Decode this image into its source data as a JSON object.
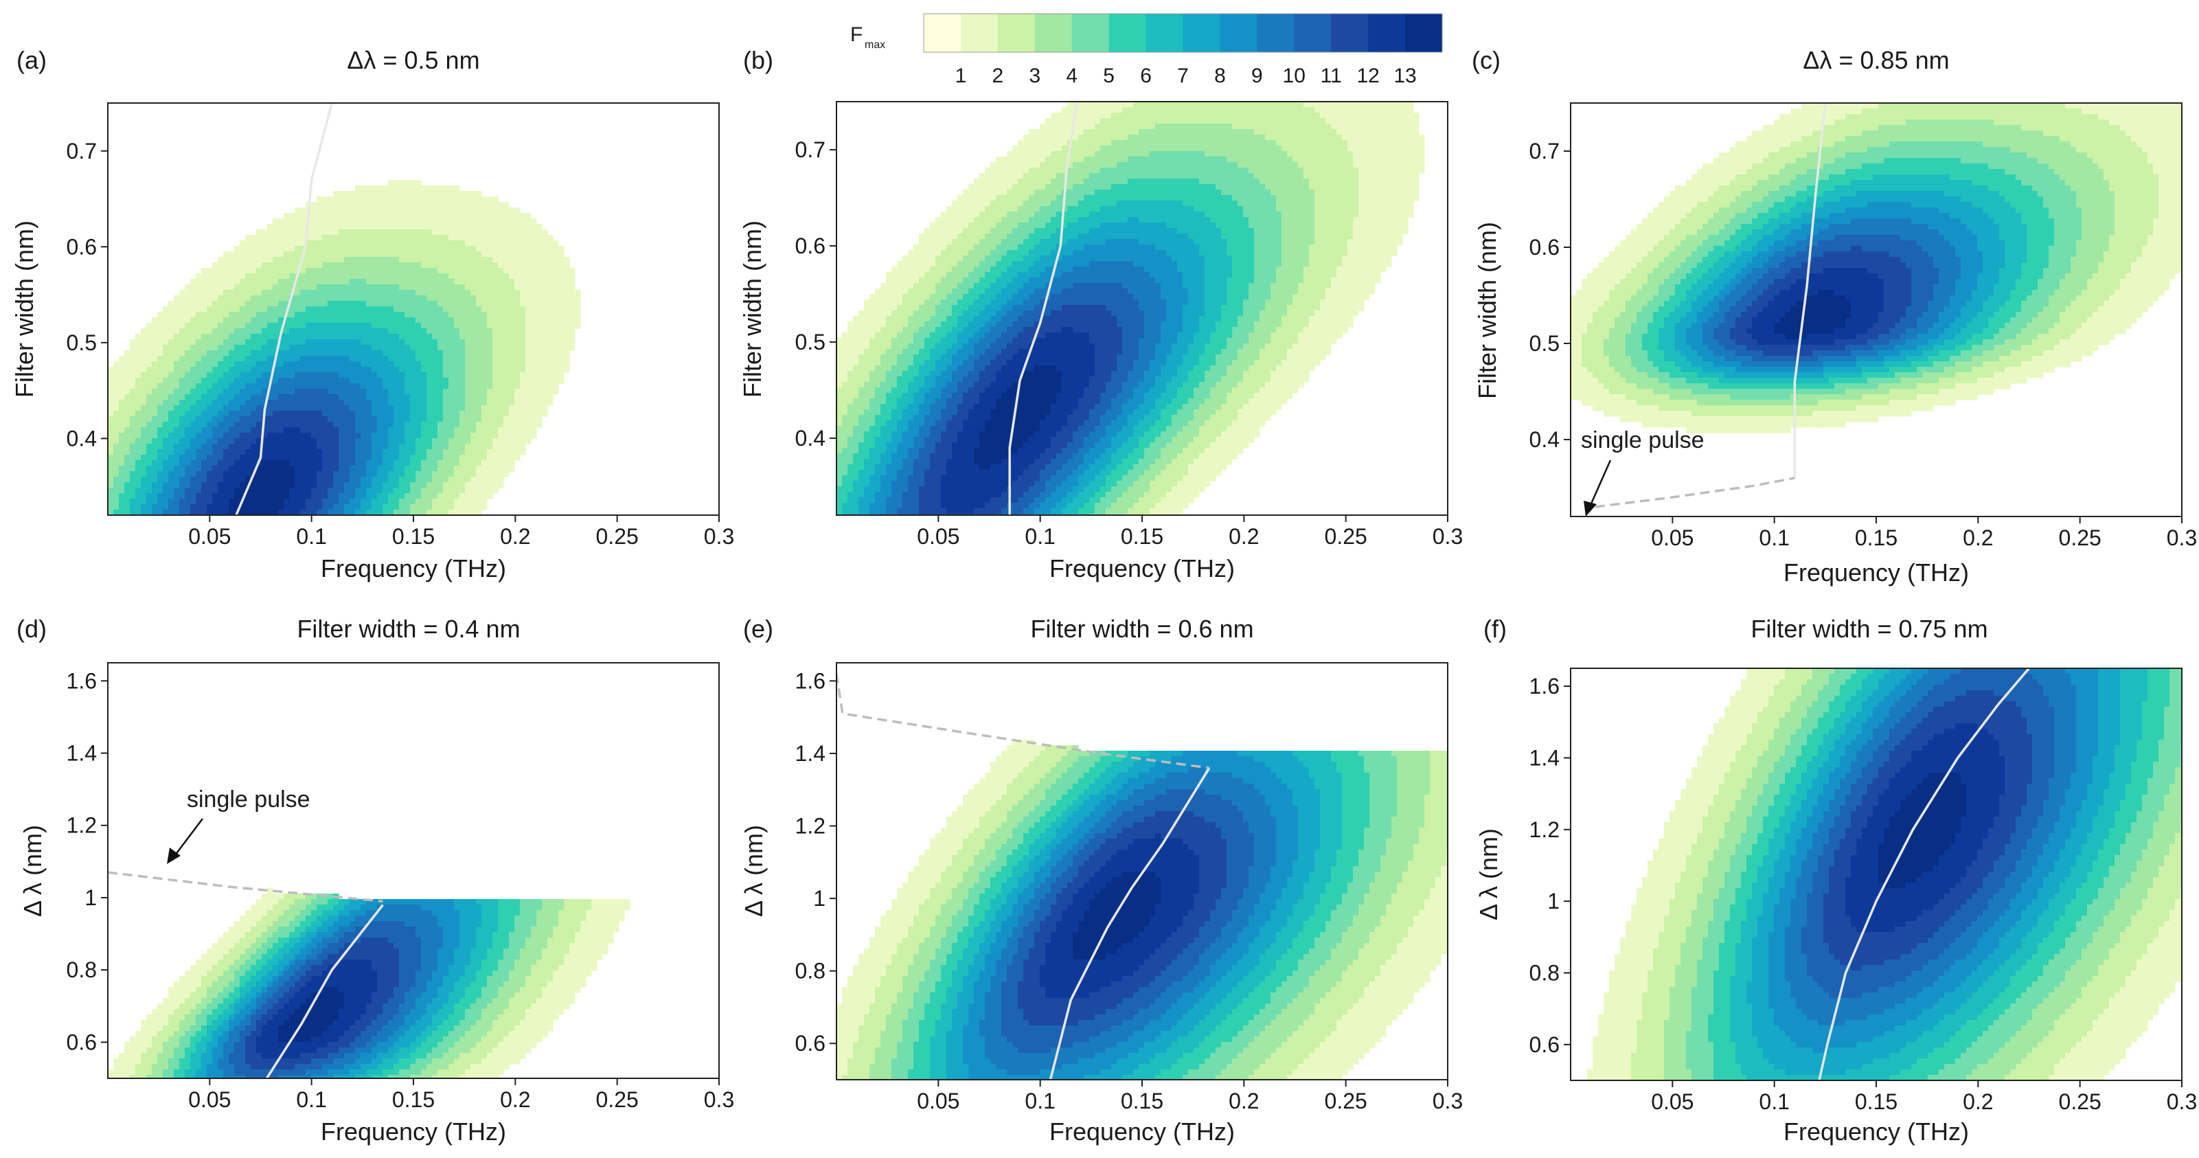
{
  "colorbar": {
    "label": "F",
    "label_sub": "max",
    "ticks": [
      "1",
      "2",
      "3",
      "4",
      "5",
      "6",
      "7",
      "8",
      "9",
      "10",
      "11",
      "12",
      "13"
    ],
    "colors": [
      "#ffffe0",
      "#eaf9c3",
      "#cbf2a6",
      "#a1e8a4",
      "#72ddad",
      "#2fd0b2",
      "#1cbcbf",
      "#16a8c7",
      "#1492c7",
      "#1a7ac0",
      "#1c63b3",
      "#1c49a2",
      "#0d3a9a",
      "#092e86"
    ]
  },
  "chart_data": [
    {
      "panel": "(a)",
      "type": "heatmap",
      "variant": "scan_dlambda",
      "title": "Δλ  = 0.5 nm",
      "xlabel": "Frequency (THz)",
      "ylabel": "Filter width (nm)",
      "xlim": [
        0,
        0.3
      ],
      "ylim": [
        0.32,
        0.75
      ],
      "xticks": [
        "0.05",
        "0.1",
        "0.15",
        "0.2",
        "0.25",
        "0.3"
      ],
      "yticks": [
        "0.4",
        "0.5",
        "0.6",
        "0.7"
      ],
      "peak": {
        "value": 13,
        "x": 0.075,
        "y": 0.34
      },
      "optimum_line": [
        [
          0.063,
          0.32
        ],
        [
          0.075,
          0.38
        ],
        [
          0.077,
          0.43
        ],
        [
          0.085,
          0.51
        ],
        [
          0.097,
          0.6
        ],
        [
          0.1,
          0.67
        ],
        [
          0.11,
          0.75
        ]
      ],
      "annotation": null
    },
    {
      "panel": "(b)",
      "type": "heatmap",
      "variant": "scan_dlambda",
      "title": "",
      "xlabel": "Frequency (THz)",
      "ylabel": "Filter width (nm)",
      "xlim": [
        0,
        0.3
      ],
      "ylim": [
        0.32,
        0.75
      ],
      "xticks": [
        "0.05",
        "0.1",
        "0.15",
        "0.2",
        "0.25",
        "0.3"
      ],
      "yticks": [
        "0.4",
        "0.5",
        "0.6",
        "0.7"
      ],
      "peak": {
        "value": 13,
        "x": 0.09,
        "y": 0.43
      },
      "optimum_line": [
        [
          0.085,
          0.32
        ],
        [
          0.085,
          0.39
        ],
        [
          0.09,
          0.46
        ],
        [
          0.1,
          0.52
        ],
        [
          0.11,
          0.6
        ],
        [
          0.113,
          0.68
        ],
        [
          0.118,
          0.75
        ]
      ],
      "annotation": null
    },
    {
      "panel": "(c)",
      "type": "heatmap",
      "variant": "scan_dlambda",
      "title": "Δλ  = 0.85 nm",
      "xlabel": "Frequency (THz)",
      "ylabel": "Filter width (nm)",
      "xlim": [
        0,
        0.3
      ],
      "ylim": [
        0.32,
        0.75
      ],
      "xticks": [
        "0.05",
        "0.1",
        "0.15",
        "0.2",
        "0.25",
        "0.3"
      ],
      "yticks": [
        "0.4",
        "0.5",
        "0.6",
        "0.7"
      ],
      "peak": {
        "value": 13,
        "x": 0.115,
        "y": 0.52
      },
      "optimum_line": [
        [
          0.11,
          0.36
        ],
        [
          0.11,
          0.46
        ],
        [
          0.116,
          0.56
        ],
        [
          0.12,
          0.65
        ],
        [
          0.125,
          0.75
        ]
      ],
      "threshold": [
        [
          0.012,
          0.33
        ],
        [
          0.05,
          0.34
        ],
        [
          0.09,
          0.352
        ],
        [
          0.11,
          0.36
        ]
      ],
      "annotation": "single pulse"
    },
    {
      "panel": "(d)",
      "type": "heatmap",
      "variant": "scan_filter",
      "title": "Filter width  = 0.4 nm",
      "xlabel": "Frequency (THz)",
      "ylabel": "Δ λ (nm)",
      "xlim": [
        0,
        0.3
      ],
      "ylim": [
        0.5,
        1.65
      ],
      "xticks": [
        "0.05",
        "0.1",
        "0.15",
        "0.2",
        "0.25",
        "0.3"
      ],
      "yticks": [
        "0.6",
        "0.8",
        "1",
        "1.2",
        "1.4",
        "1.6"
      ],
      "peak": {
        "value": 13,
        "x": 0.095,
        "y": 0.65
      },
      "optimum_line": [
        [
          0.078,
          0.5
        ],
        [
          0.095,
          0.65
        ],
        [
          0.11,
          0.8
        ],
        [
          0.135,
          0.98
        ]
      ],
      "threshold": [
        [
          0,
          1.07
        ],
        [
          0.06,
          1.03
        ],
        [
          0.135,
          0.99
        ]
      ],
      "annotation": "single pulse"
    },
    {
      "panel": "(e)",
      "type": "heatmap",
      "variant": "scan_filter",
      "title": "Filter width  = 0.6 nm",
      "xlabel": "Frequency (THz)",
      "ylabel": "Δ λ (nm)",
      "xlim": [
        0,
        0.3
      ],
      "ylim": [
        0.5,
        1.65
      ],
      "xticks": [
        "0.05",
        "0.1",
        "0.15",
        "0.2",
        "0.25",
        "0.3"
      ],
      "yticks": [
        "0.6",
        "0.8",
        "1",
        "1.2",
        "1.4",
        "1.6"
      ],
      "peak": {
        "value": 13,
        "x": 0.135,
        "y": 0.96
      },
      "optimum_line": [
        [
          0.105,
          0.5
        ],
        [
          0.115,
          0.72
        ],
        [
          0.133,
          0.92
        ],
        [
          0.145,
          1.03
        ],
        [
          0.16,
          1.15
        ],
        [
          0.183,
          1.36
        ]
      ],
      "threshold": [
        [
          0,
          1.62
        ],
        [
          0.003,
          1.51
        ],
        [
          0.06,
          1.46
        ],
        [
          0.13,
          1.4
        ],
        [
          0.183,
          1.36
        ]
      ],
      "annotation": null
    },
    {
      "panel": "(f)",
      "type": "heatmap",
      "variant": "scan_filter",
      "title": "Filter width  = 0.75 nm",
      "xlabel": "Frequency (THz)",
      "ylabel": "Δ λ (nm)",
      "xlim": [
        0,
        0.3
      ],
      "ylim": [
        0.5,
        1.65
      ],
      "xticks": [
        "0.05",
        "0.1",
        "0.15",
        "0.2",
        "0.25",
        "0.3"
      ],
      "yticks": [
        "0.6",
        "0.8",
        "1",
        "1.2",
        "1.4",
        "1.6"
      ],
      "peak": {
        "value": 13,
        "x": 0.17,
        "y": 1.2
      },
      "optimum_line": [
        [
          0.122,
          0.5
        ],
        [
          0.126,
          0.6
        ],
        [
          0.135,
          0.8
        ],
        [
          0.15,
          1.0
        ],
        [
          0.168,
          1.2
        ],
        [
          0.19,
          1.4
        ],
        [
          0.21,
          1.55
        ],
        [
          0.225,
          1.65
        ]
      ],
      "annotation": null
    }
  ]
}
